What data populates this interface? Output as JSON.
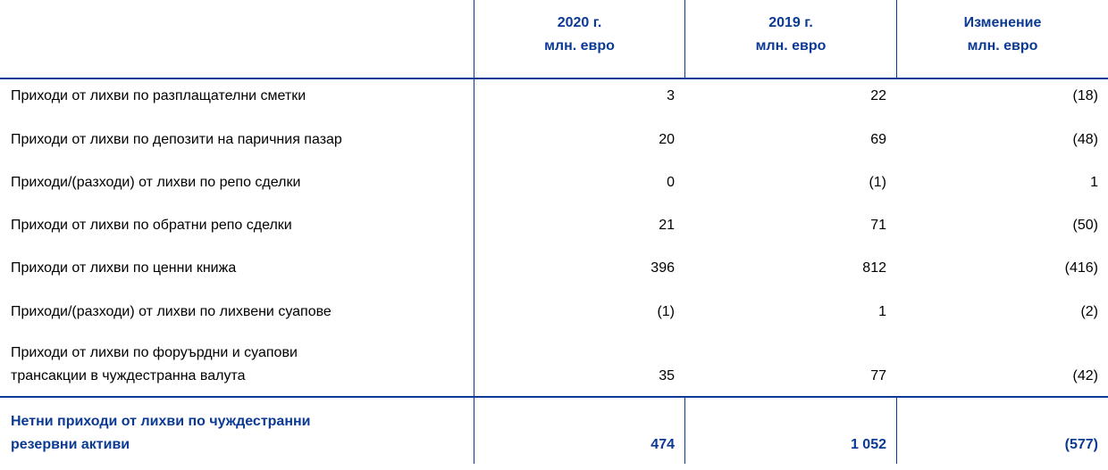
{
  "table": {
    "headers": [
      [
        "2020 г.",
        "млн. евро"
      ],
      [
        "2019 г.",
        "млн. евро"
      ],
      [
        "Изменение",
        "млн. евро"
      ]
    ],
    "rows": [
      {
        "label": [
          "Приходи от лихви по разплащателни сметки"
        ],
        "cells": [
          "3",
          "22",
          "(18)"
        ]
      },
      {
        "label": [
          "Приходи от лихви по депозити на паричния пазар"
        ],
        "cells": [
          "20",
          "69",
          "(48)"
        ]
      },
      {
        "label": [
          "Приходи/(разходи) от лихви по репо сделки"
        ],
        "cells": [
          "0",
          "(1)",
          "1"
        ]
      },
      {
        "label": [
          "Приходи от лихви по обратни репо сделки"
        ],
        "cells": [
          "21",
          "71",
          "(50)"
        ]
      },
      {
        "label": [
          "Приходи от лихви по ценни книжа"
        ],
        "cells": [
          "396",
          "812",
          "(416)"
        ]
      },
      {
        "label": [
          "Приходи/(разходи) от лихви по лихвени суапове"
        ],
        "cells": [
          "(1)",
          "1",
          "(2)"
        ]
      },
      {
        "label": [
          "Приходи от лихви по форуърдни и суапови",
          "трансакции в чуждестранна валута"
        ],
        "cells": [
          "35",
          "77",
          "(42)"
        ]
      }
    ],
    "total": {
      "label": [
        "Нетни приходи от лихви по чуждестранни",
        "резервни активи"
      ],
      "cells": [
        "474",
        "1 052",
        "(577)"
      ]
    }
  }
}
